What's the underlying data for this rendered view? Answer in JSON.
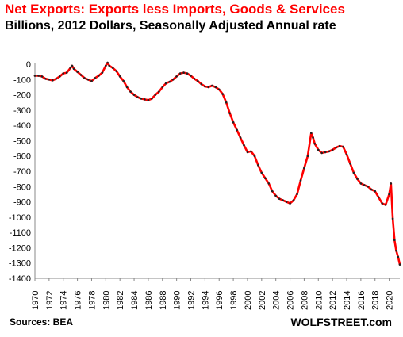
{
  "chart_data": {
    "type": "line",
    "title": "Net Exports: Exports less Imports, Goods & Services",
    "subtitle": "Billions, 2012 Dollars, Seasonally Adjusted Annual rate",
    "xlabel": "",
    "ylabel": "",
    "xlim": [
      1970,
      2021.5
    ],
    "ylim": [
      -1400,
      0
    ],
    "x_ticks": [
      1970,
      1972,
      1974,
      1976,
      1978,
      1980,
      1982,
      1984,
      1986,
      1988,
      1990,
      1992,
      1994,
      1996,
      1998,
      2000,
      2002,
      2004,
      2006,
      2008,
      2010,
      2012,
      2014,
      2016,
      2018,
      2020
    ],
    "y_ticks": [
      0,
      -100,
      -200,
      -300,
      -400,
      -500,
      -600,
      -700,
      -800,
      -900,
      -1000,
      -1100,
      -1200,
      -1300,
      -1400
    ],
    "grid": false,
    "line_color": "#ff0000",
    "marker_color": "#222222",
    "series": [
      {
        "x": [
          1970.0,
          1970.5,
          1971.0,
          1971.5,
          1972.0,
          1972.5,
          1973.0,
          1973.5,
          1974.0,
          1974.5,
          1975.0,
          1975.25,
          1975.5,
          1976.0,
          1976.5,
          1977.0,
          1977.5,
          1978.0,
          1978.5,
          1979.0,
          1979.5,
          1980.0,
          1980.25,
          1980.5,
          1981.0,
          1981.5,
          1982.0,
          1982.5,
          1983.0,
          1983.5,
          1984.0,
          1984.5,
          1985.0,
          1985.5,
          1986.0,
          1986.5,
          1987.0,
          1987.5,
          1988.0,
          1988.5,
          1989.0,
          1989.5,
          1990.0,
          1990.5,
          1991.0,
          1991.5,
          1992.0,
          1992.5,
          1993.0,
          1993.5,
          1994.0,
          1994.5,
          1995.0,
          1995.5,
          1996.0,
          1996.5,
          1997.0,
          1997.5,
          1998.0,
          1998.5,
          1999.0,
          1999.5,
          2000.0,
          2000.5,
          2001.0,
          2001.5,
          2002.0,
          2002.5,
          2003.0,
          2003.5,
          2004.0,
          2004.5,
          2005.0,
          2005.5,
          2006.0,
          2006.5,
          2007.0,
          2007.5,
          2008.0,
          2008.5,
          2009.0,
          2009.25,
          2009.5,
          2010.0,
          2010.5,
          2011.0,
          2011.5,
          2012.0,
          2012.5,
          2013.0,
          2013.5,
          2014.0,
          2014.5,
          2015.0,
          2015.5,
          2016.0,
          2016.5,
          2017.0,
          2017.5,
          2018.0,
          2018.5,
          2019.0,
          2019.5,
          2020.0,
          2020.25,
          2020.5,
          2020.75,
          2021.0,
          2021.25,
          2021.5
        ],
        "values": [
          -75,
          -75,
          -80,
          -95,
          -100,
          -105,
          -95,
          -80,
          -60,
          -55,
          -25,
          -10,
          -30,
          -50,
          -70,
          -90,
          -100,
          -110,
          -90,
          -75,
          -55,
          -10,
          10,
          -10,
          -25,
          -45,
          -80,
          -110,
          -150,
          -180,
          -200,
          -215,
          -225,
          -230,
          -235,
          -225,
          -200,
          -180,
          -150,
          -125,
          -115,
          -100,
          -80,
          -60,
          -55,
          -60,
          -75,
          -95,
          -110,
          -130,
          -145,
          -150,
          -140,
          -150,
          -165,
          -195,
          -250,
          -320,
          -380,
          -430,
          -480,
          -530,
          -575,
          -570,
          -600,
          -660,
          -710,
          -745,
          -780,
          -830,
          -860,
          -880,
          -890,
          -900,
          -910,
          -890,
          -850,
          -760,
          -680,
          -600,
          -450,
          -480,
          -520,
          -560,
          -580,
          -575,
          -570,
          -560,
          -545,
          -535,
          -540,
          -590,
          -650,
          -710,
          -750,
          -780,
          -790,
          -800,
          -820,
          -830,
          -870,
          -910,
          -920,
          -850,
          -780,
          -1010,
          -1150,
          -1220,
          -1260,
          -1310
        ]
      }
    ]
  },
  "footer": {
    "source": "Sources: BEA",
    "brand": "WOLFSTREET.com"
  }
}
